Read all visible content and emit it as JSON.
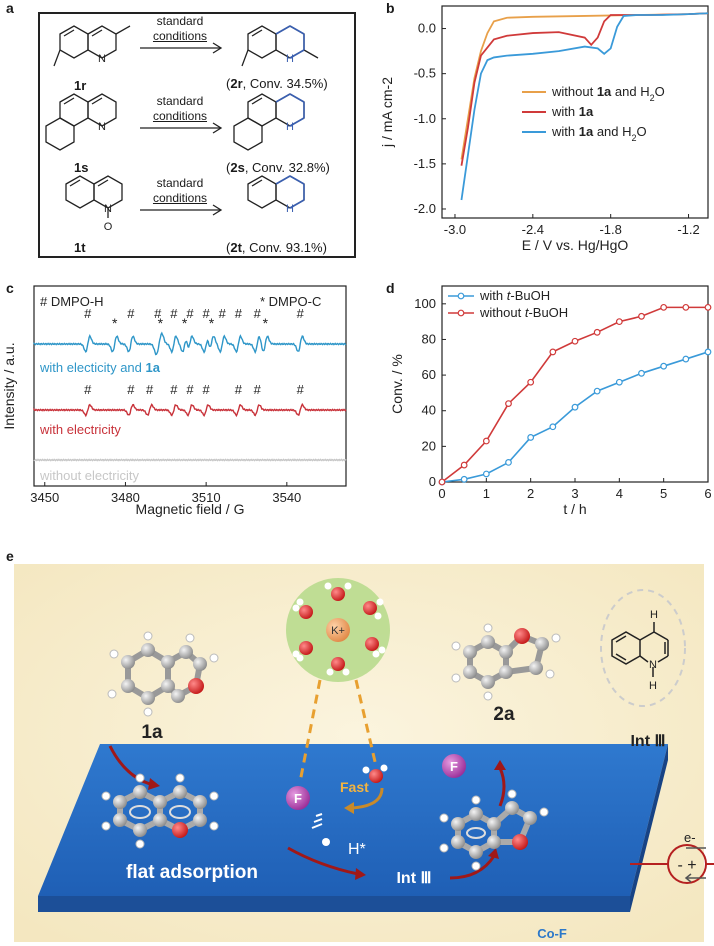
{
  "panels": {
    "a": "a",
    "b": "b",
    "c": "c",
    "d": "d",
    "e": "e"
  },
  "panel_a": {
    "condition_line1": "standard",
    "condition_line2": "conditions",
    "rows": [
      {
        "sm": "1r",
        "prod": "2r",
        "conv": ", Conv. 34.5%)"
      },
      {
        "sm": "1s",
        "prod": "2s",
        "conv": ", Conv. 32.8%)"
      },
      {
        "sm": "1t",
        "prod": "2t",
        "conv": ", Conv. 93.1%)"
      }
    ],
    "atom_N": "N",
    "atom_NH": "H",
    "nplus": "N",
    "ominus": "O"
  },
  "chart_data": [
    {
      "type": "line",
      "panel": "b",
      "xlabel": "E / V vs. Hg/HgO",
      "ylabel": "j / mA cm-2",
      "xlim": [
        -3.1,
        -1.05
      ],
      "ylim": [
        -2.1,
        0.25
      ],
      "xticks": [
        "-3.0",
        "-2.4",
        "-1.8",
        "-1.2"
      ],
      "xtick_values": [
        -3.0,
        -2.4,
        -1.8,
        -1.2
      ],
      "yticks": [
        "0.0",
        "-0.5",
        "-1.0",
        "-1.5",
        "-2.0"
      ],
      "ytick_values": [
        0.0,
        -0.5,
        -1.0,
        -1.5,
        -2.0
      ],
      "series": [
        {
          "name": "without 1a and H2O",
          "color": "#e8a04a",
          "x": [
            -2.95,
            -2.9,
            -2.85,
            -2.8,
            -2.75,
            -2.7,
            -2.6,
            -2.4,
            -2.0,
            -1.6,
            -1.2,
            -1.05
          ],
          "y": [
            -1.45,
            -1.0,
            -0.55,
            -0.25,
            -0.05,
            0.08,
            0.12,
            0.13,
            0.14,
            0.15,
            0.16,
            0.17
          ]
        },
        {
          "name": "with 1a",
          "color": "#d03a3a",
          "x": [
            -2.95,
            -2.9,
            -2.85,
            -2.8,
            -2.7,
            -2.6,
            -2.4,
            -2.2,
            -2.0,
            -1.95,
            -1.9,
            -1.85,
            -1.8,
            -1.7,
            -1.5,
            -1.2,
            -1.05
          ],
          "y": [
            -1.52,
            -1.1,
            -0.6,
            -0.3,
            -0.12,
            -0.08,
            -0.05,
            -0.04,
            -0.1,
            -0.18,
            -0.1,
            0.08,
            0.15,
            0.15,
            0.15,
            0.16,
            0.17
          ]
        },
        {
          "name": "with 1a and H2O",
          "color": "#3a9ad9",
          "x": [
            -2.95,
            -2.9,
            -2.85,
            -2.8,
            -2.75,
            -2.7,
            -2.6,
            -2.4,
            -2.2,
            -2.0,
            -1.9,
            -1.85,
            -1.8,
            -1.75,
            -1.7,
            -1.6,
            -1.4,
            -1.2,
            -1.05
          ],
          "y": [
            -1.9,
            -1.4,
            -0.9,
            -0.5,
            -0.35,
            -0.32,
            -0.3,
            -0.28,
            -0.25,
            -0.2,
            -0.22,
            -0.28,
            -0.22,
            0.02,
            0.14,
            0.15,
            0.15,
            0.16,
            0.17
          ]
        }
      ],
      "legend": "center-right",
      "legend_labels": [
        {
          "pre": "without ",
          "bold": "1a",
          "post": " and H",
          "sub": "2",
          "tail": "O"
        },
        {
          "pre": "with ",
          "bold": "1a",
          "post": "",
          "sub": "",
          "tail": ""
        },
        {
          "pre": "with ",
          "bold": "1a",
          "post": " and H",
          "sub": "2",
          "tail": "O"
        }
      ]
    },
    {
      "type": "line",
      "panel": "c",
      "xlabel": "Magnetic field / G",
      "ylabel": "Intensity / a.u.",
      "xlim": [
        3446,
        3562
      ],
      "xticks": [
        "3450",
        "3480",
        "3510",
        "3540"
      ],
      "xtick_values": [
        3450,
        3480,
        3510,
        3540
      ],
      "legend_hash": "# DMPO-H",
      "legend_star": "* DMPO-C",
      "series": [
        {
          "name": "with electicity and 1a",
          "color": "#2e96c8",
          "label_pre": "with electicity and ",
          "label_bold": "1a",
          "hash_lines": [
            3466,
            3482,
            3492,
            3498,
            3504,
            3510,
            3516,
            3522,
            3529,
            3545
          ],
          "star_lines": [
            3476,
            3493,
            3502,
            3512,
            3532
          ]
        },
        {
          "name": "with electricity",
          "color": "#c8323a",
          "label_pre": "with electricity",
          "label_bold": "",
          "hash_lines": [
            3466,
            3482,
            3489,
            3498,
            3504,
            3510,
            3522,
            3529,
            3545
          ],
          "star_lines": []
        },
        {
          "name": "without electricity",
          "color": "#c7c7c7",
          "label_pre": "without electricity",
          "label_bold": "",
          "hash_lines": [],
          "star_lines": []
        }
      ]
    },
    {
      "type": "line",
      "panel": "d",
      "xlabel": "t / h",
      "ylabel": "Conv. / %",
      "xlim": [
        0,
        6
      ],
      "ylim": [
        0,
        110
      ],
      "xticks": [
        "0",
        "1",
        "2",
        "3",
        "4",
        "5",
        "6"
      ],
      "xtick_values": [
        0,
        1,
        2,
        3,
        4,
        5,
        6
      ],
      "yticks": [
        "0",
        "20",
        "40",
        "60",
        "80",
        "100"
      ],
      "ytick_values": [
        0,
        20,
        40,
        60,
        80,
        100
      ],
      "series": [
        {
          "name": "with t-BuOH",
          "color": "#3a9ad9",
          "x": [
            0,
            0.5,
            1,
            1.5,
            2,
            2.5,
            3,
            3.5,
            4,
            4.5,
            5,
            5.5,
            6
          ],
          "y": [
            0,
            1.5,
            4.5,
            11,
            25,
            31,
            42,
            51,
            56,
            61,
            65,
            69,
            73
          ]
        },
        {
          "name": "without t-BuOH",
          "color": "#d03a3a",
          "x": [
            0,
            0.5,
            1,
            1.5,
            2,
            2.5,
            3,
            3.5,
            4,
            4.5,
            5,
            5.5,
            6
          ],
          "y": [
            0,
            9.5,
            23,
            44,
            56,
            73,
            79,
            84,
            90,
            93,
            98,
            98,
            98
          ]
        }
      ],
      "legend": "top-left",
      "legend_labels": [
        {
          "pre": "with ",
          "it": "t",
          "post": "-BuOH"
        },
        {
          "pre": "without ",
          "it": "t",
          "post": "-BuOH"
        }
      ]
    }
  ],
  "panel_e": {
    "label_1a": "1a",
    "label_2a": "2a",
    "int3_top": "Int Ⅲ",
    "int3_bottom": "Int Ⅲ",
    "flat": "flat adsorption",
    "fast": "Fast",
    "hstar": "H*",
    "surface": "Co-F",
    "f": "F",
    "k": "K+",
    "eminus": "e-",
    "ion_signs": "- +",
    "struct_h_top": "H",
    "struct_n": "N",
    "struct_h_bot": "H"
  }
}
